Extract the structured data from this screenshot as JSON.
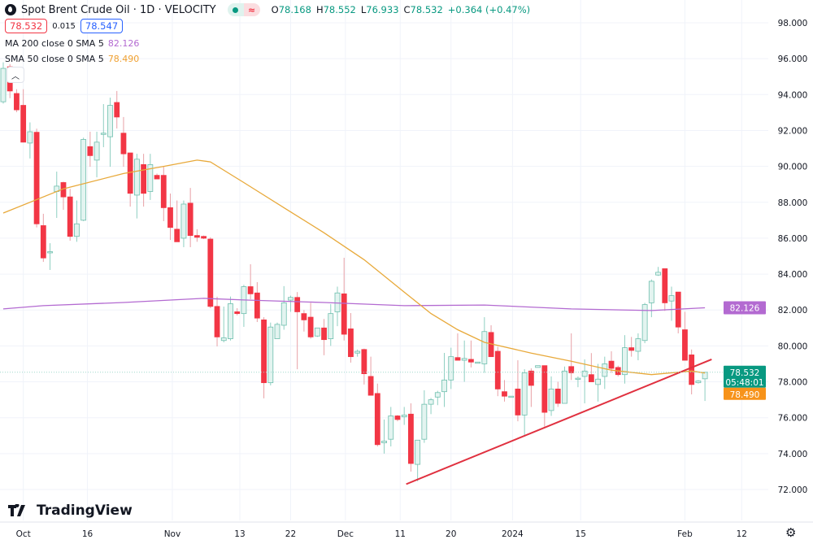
{
  "header": {
    "title": "Spot Brent Crude Oil · 1D · VELOCITY",
    "logo_icon": "oil-drop-icon",
    "status_icons": [
      "market-open-dot-icon",
      "delayed-data-wave-icon"
    ],
    "ohlc": {
      "o_label": "O",
      "o": "78.168",
      "h_label": "H",
      "h": "78.552",
      "l_label": "L",
      "l": "76.933",
      "c_label": "C",
      "c": "78.532",
      "change": "+0.364 (+0.47%)"
    }
  },
  "quote": {
    "sell": "78.532",
    "spread": "0.015",
    "buy": "78.547"
  },
  "legend": [
    {
      "label": "MA 200 close 0 SMA 5",
      "value": "82.126",
      "color": "#b36ad1"
    },
    {
      "label": "SMA 50 close 0 SMA 5",
      "value": "78.490",
      "color": "#f0a030"
    }
  ],
  "price_labels": {
    "ma200": "82.126",
    "last": "78.532",
    "countdown": "05:48:01",
    "sma50": "78.490"
  },
  "brand": "TradingView",
  "colors": {
    "up": "#089981",
    "down": "#f23645",
    "up_fill": "#e3f4f0",
    "ma200": "#b36ad1",
    "sma50": "#e8a93a",
    "trendline": "#e0303f",
    "last_price": "#089981",
    "sma50_label": "#f7931a"
  },
  "chart_data": {
    "type": "candlestick",
    "title": "Spot Brent Crude Oil · 1D · VELOCITY",
    "ylim": [
      71.5,
      99
    ],
    "y_ticks": [
      "72.000",
      "74.000",
      "76.000",
      "78.000",
      "80.000",
      "82.000",
      "84.000",
      "86.000",
      "88.000",
      "90.000",
      "92.000",
      "94.000",
      "96.000",
      "98.000"
    ],
    "x_ticks": [
      {
        "bar": 3,
        "label": "Oct"
      },
      {
        "bar": 12.6,
        "label": "16"
      },
      {
        "bar": 25.3,
        "label": "Nov"
      },
      {
        "bar": 35.4,
        "label": "13"
      },
      {
        "bar": 43,
        "label": "22"
      },
      {
        "bar": 51.2,
        "label": "Dec"
      },
      {
        "bar": 59.4,
        "label": "11"
      },
      {
        "bar": 67,
        "label": "20"
      },
      {
        "bar": 76.2,
        "label": "2024"
      },
      {
        "bar": 86.4,
        "label": "15"
      },
      {
        "bar": 102,
        "label": "Feb"
      },
      {
        "bar": 110.5,
        "label": "12"
      }
    ],
    "grid": true,
    "candles_ohlc": [
      [
        93.6,
        95.8,
        93.5,
        95.46
      ],
      [
        95.55,
        95.7,
        93.8,
        94.2
      ],
      [
        94.06,
        94.3,
        93.02,
        93.15
      ],
      [
        93.4,
        94.3,
        91.35,
        91.35
      ],
      [
        91.3,
        92.45,
        90.44,
        91.93
      ],
      [
        91.9,
        92.1,
        86.6,
        86.8
      ],
      [
        86.7,
        87.36,
        84.68,
        84.9
      ],
      [
        85.2,
        85.72,
        84.23,
        85.25
      ],
      [
        88.6,
        89.71,
        87.13,
        88.9
      ],
      [
        89.1,
        89.15,
        87.58,
        88.3
      ],
      [
        88.3,
        88.75,
        85.86,
        86.1
      ],
      [
        86.1,
        88.1,
        85.8,
        86.8
      ],
      [
        87.0,
        91.6,
        86.95,
        91.5
      ],
      [
        91.1,
        91.93,
        89.98,
        90.6
      ],
      [
        90.35,
        91.93,
        89.39,
        91.35
      ],
      [
        91.8,
        93.47,
        91.07,
        91.85
      ],
      [
        91.65,
        93.83,
        89.98,
        93.4
      ],
      [
        93.56,
        94.2,
        92.11,
        92.75
      ],
      [
        91.85,
        92.75,
        89.98,
        90.7
      ],
      [
        90.75,
        90.75,
        87.76,
        88.5
      ],
      [
        88.4,
        90.7,
        87.1,
        90.4
      ],
      [
        90.1,
        90.7,
        87.76,
        88.5
      ],
      [
        88.6,
        90.7,
        88.13,
        90.1
      ],
      [
        89.5,
        89.6,
        89.3,
        89.3
      ],
      [
        89.5,
        90.0,
        86.95,
        87.7
      ],
      [
        87.7,
        88.49,
        85.9,
        86.6
      ],
      [
        86.5,
        88.1,
        85.8,
        85.8
      ],
      [
        86.0,
        88.1,
        85.5,
        87.9
      ],
      [
        87.95,
        88.8,
        85.5,
        86.15
      ],
      [
        86.15,
        86.5,
        85.8,
        86.05
      ],
      [
        86.1,
        86.15,
        85.95,
        86.0
      ],
      [
        85.95,
        86.05,
        82.1,
        82.2
      ],
      [
        82.2,
        82.74,
        79.97,
        80.5
      ],
      [
        80.3,
        82.19,
        80.2,
        80.45
      ],
      [
        80.4,
        82.75,
        80.3,
        82.35
      ],
      [
        81.9,
        82.1,
        81.7,
        81.8
      ],
      [
        81.8,
        83.4,
        81.06,
        83.3
      ],
      [
        83.3,
        84.55,
        82.6,
        82.9
      ],
      [
        82.95,
        83.55,
        81.33,
        81.55
      ],
      [
        81.45,
        81.6,
        77.08,
        77.95
      ],
      [
        77.95,
        81.3,
        77.8,
        81.05
      ],
      [
        80.4,
        81.3,
        80.4,
        81.2
      ],
      [
        81.15,
        83.33,
        80.9,
        82.4
      ],
      [
        82.55,
        82.8,
        81.9,
        82.7
      ],
      [
        82.7,
        83.0,
        78.7,
        81.9
      ],
      [
        81.8,
        82.0,
        80.8,
        81.45
      ],
      [
        81.6,
        82.4,
        80.4,
        80.5
      ],
      [
        80.55,
        81.0,
        80.5,
        81.0
      ],
      [
        81.0,
        81.5,
        79.48,
        80.35
      ],
      [
        80.4,
        82.33,
        80.0,
        81.8
      ],
      [
        81.9,
        83.3,
        81.1,
        82.95
      ],
      [
        82.9,
        84.91,
        80.3,
        80.65
      ],
      [
        80.95,
        81.83,
        79.07,
        79.4
      ],
      [
        79.6,
        79.8,
        79.4,
        79.7
      ],
      [
        79.8,
        79.85,
        77.85,
        78.45
      ],
      [
        78.3,
        79.4,
        77.25,
        77.25
      ],
      [
        77.35,
        77.9,
        74.4,
        74.5
      ],
      [
        74.6,
        75.9,
        74.0,
        74.7
      ],
      [
        74.8,
        76.6,
        74.4,
        76.1
      ],
      [
        76.1,
        76.15,
        75.8,
        75.9
      ],
      [
        76.05,
        76.6,
        75.6,
        76.15
      ],
      [
        76.2,
        76.8,
        73.0,
        73.45
      ],
      [
        73.4,
        74.5,
        72.46,
        74.75
      ],
      [
        74.8,
        77.53,
        74.6,
        76.75
      ],
      [
        76.75,
        77.1,
        76.2,
        77.0
      ],
      [
        77.15,
        77.5,
        76.7,
        77.4
      ],
      [
        77.45,
        79.61,
        76.6,
        78.1
      ],
      [
        78.1,
        79.9,
        77.6,
        79.4
      ],
      [
        79.35,
        80.7,
        79.2,
        79.2
      ],
      [
        79.2,
        80.3,
        78.0,
        79.3
      ],
      [
        79.25,
        80.3,
        78.8,
        79.1
      ],
      [
        79.1,
        79.1,
        79.05,
        79.1
      ],
      [
        79.0,
        81.6,
        78.5,
        80.8
      ],
      [
        80.75,
        81.15,
        79.4,
        79.4
      ],
      [
        79.7,
        79.95,
        77.2,
        77.6
      ],
      [
        77.45,
        78.1,
        76.9,
        77.2
      ],
      [
        77.2,
        77.2,
        77.2,
        77.2
      ],
      [
        77.6,
        79.2,
        75.8,
        76.15
      ],
      [
        76.15,
        78.7,
        74.95,
        78.5
      ],
      [
        78.6,
        78.75,
        76.6,
        77.8
      ],
      [
        78.8,
        78.9,
        78.8,
        78.9
      ],
      [
        78.9,
        78.9,
        75.5,
        76.3
      ],
      [
        76.4,
        78.3,
        76.1,
        77.6
      ],
      [
        77.6,
        78.0,
        76.6,
        76.8
      ],
      [
        76.8,
        78.85,
        76.8,
        78.6
      ],
      [
        78.85,
        80.7,
        78.1,
        78.5
      ],
      [
        78.2,
        78.3,
        77.7,
        78.2
      ],
      [
        78.3,
        79.25,
        76.8,
        78.6
      ],
      [
        78.4,
        79.6,
        78.0,
        78.0
      ],
      [
        77.85,
        79.0,
        76.9,
        78.15
      ],
      [
        78.3,
        79.4,
        77.6,
        79.0
      ],
      [
        79.15,
        79.7,
        78.5,
        78.75
      ],
      [
        78.8,
        78.9,
        78.3,
        78.4
      ],
      [
        78.4,
        80.6,
        77.9,
        79.9
      ],
      [
        79.9,
        80.5,
        79.4,
        79.75
      ],
      [
        79.7,
        80.7,
        79.2,
        80.4
      ],
      [
        80.3,
        82.4,
        80.15,
        82.3
      ],
      [
        82.4,
        83.7,
        81.6,
        83.6
      ],
      [
        83.95,
        84.4,
        83.9,
        84.1
      ],
      [
        84.3,
        84.3,
        81.95,
        82.4
      ],
      [
        82.5,
        83.3,
        81.4,
        82.8
      ],
      [
        83.0,
        83.0,
        80.7,
        81.05
      ],
      [
        80.9,
        81.9,
        79.2,
        79.2
      ],
      [
        79.5,
        79.8,
        77.3,
        77.85
      ],
      [
        77.95,
        78.1,
        77.9,
        78.05
      ],
      [
        78.168,
        78.552,
        76.933,
        78.532
      ]
    ],
    "series": [
      {
        "name": "MA 200 close 0 SMA 5",
        "points": [
          [
            0,
            82.06
          ],
          [
            6,
            82.24
          ],
          [
            18,
            82.42
          ],
          [
            30,
            82.65
          ],
          [
            36,
            82.56
          ],
          [
            48,
            82.42
          ],
          [
            60,
            82.24
          ],
          [
            72,
            82.28
          ],
          [
            85,
            82.06
          ],
          [
            97,
            81.97
          ],
          [
            105,
            82.126
          ]
        ]
      },
      {
        "name": "SMA 50 close 0 SMA 5",
        "points": [
          [
            0,
            87.4
          ],
          [
            9,
            88.75
          ],
          [
            18,
            89.6
          ],
          [
            24,
            90.0
          ],
          [
            29,
            90.35
          ],
          [
            31,
            90.25
          ],
          [
            36,
            89.1
          ],
          [
            42,
            87.7
          ],
          [
            48,
            86.3
          ],
          [
            54,
            84.8
          ],
          [
            60,
            83.0
          ],
          [
            64,
            81.8
          ],
          [
            68,
            80.9
          ],
          [
            72,
            80.2
          ],
          [
            79,
            79.6
          ],
          [
            85,
            79.15
          ],
          [
            91,
            78.65
          ],
          [
            97,
            78.4
          ],
          [
            103,
            78.6
          ],
          [
            105,
            78.49
          ]
        ]
      }
    ],
    "trendline": [
      [
        60.3,
        72.3
      ],
      [
        106,
        79.25
      ]
    ],
    "last_price": 78.532
  }
}
